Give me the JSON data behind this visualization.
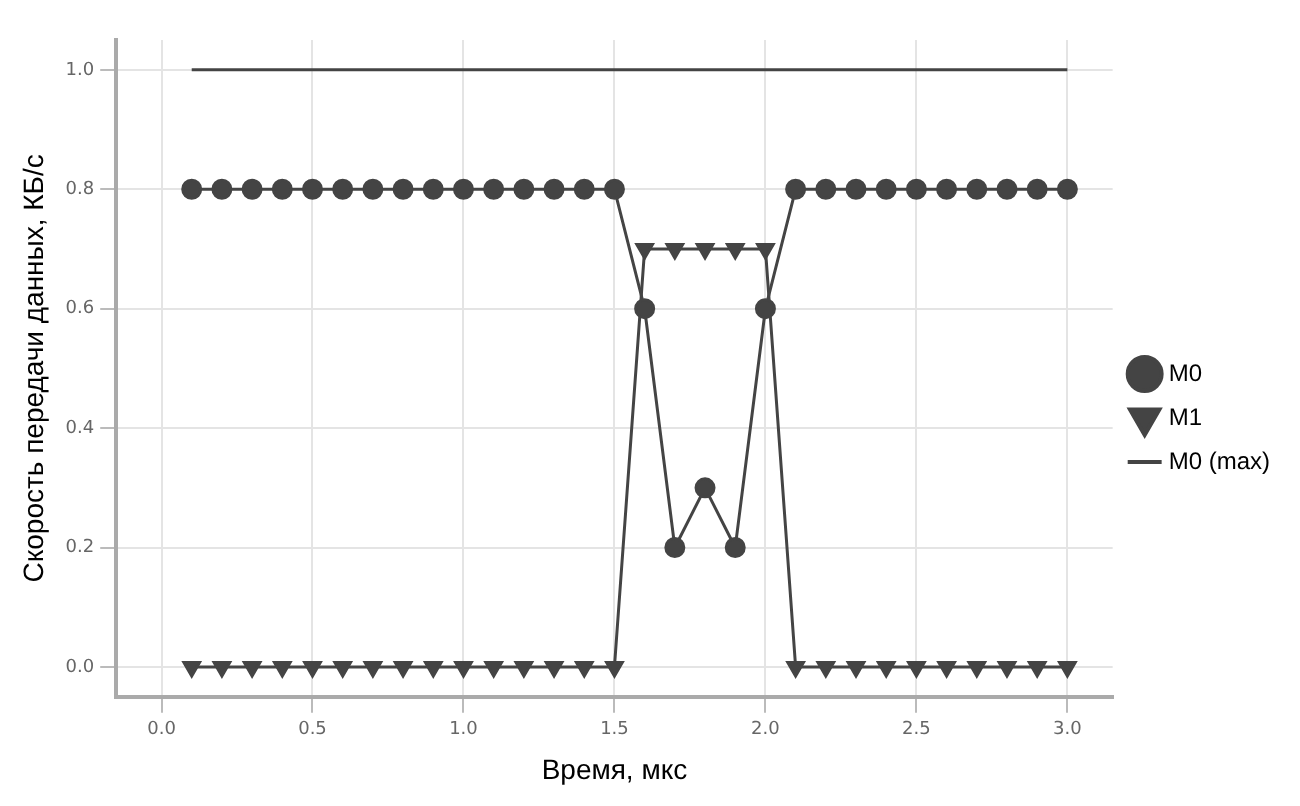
{
  "chart_data": {
    "type": "line",
    "xlabel": "Время, мкс",
    "ylabel": "Скорость передачи данных, КБ/с",
    "x": [
      0.1,
      0.2,
      0.3,
      0.4,
      0.5,
      0.6,
      0.7,
      0.8,
      0.9,
      1.0,
      1.1,
      1.2,
      1.3,
      1.4,
      1.5,
      1.6,
      1.7,
      1.8,
      1.9,
      2.0,
      2.1,
      2.2,
      2.3,
      2.4,
      2.5,
      2.6,
      2.7,
      2.8,
      2.9,
      3.0
    ],
    "series": [
      {
        "name": "M0",
        "color": "#444444",
        "marker": "circle",
        "values": [
          0.8,
          0.8,
          0.8,
          0.8,
          0.8,
          0.8,
          0.8,
          0.8,
          0.8,
          0.8,
          0.8,
          0.8,
          0.8,
          0.8,
          0.8,
          0.6,
          0.2,
          0.3,
          0.2,
          0.6,
          0.8,
          0.8,
          0.8,
          0.8,
          0.8,
          0.8,
          0.8,
          0.8,
          0.8,
          0.8
        ]
      },
      {
        "name": "M1",
        "color": "#444444",
        "marker": "triangle",
        "values": [
          0,
          0,
          0,
          0,
          0,
          0,
          0,
          0,
          0,
          0,
          0,
          0,
          0,
          0,
          0,
          0.7,
          0.7,
          0.7,
          0.7,
          0.7,
          0,
          0,
          0,
          0,
          0,
          0,
          0,
          0,
          0,
          0
        ]
      },
      {
        "name": "M0 (max)",
        "color": "#444444",
        "marker": "none",
        "values": [
          1,
          1,
          1,
          1,
          1,
          1,
          1,
          1,
          1,
          1,
          1,
          1,
          1,
          1,
          1,
          1,
          1,
          1,
          1,
          1,
          1,
          1,
          1,
          1,
          1,
          1,
          1,
          1,
          1,
          1
        ]
      }
    ],
    "xlim": [
      -0.15,
      3.15
    ],
    "xticks": [
      {
        "value": 0,
        "label": "0.0"
      },
      0.5,
      {
        "value": 1,
        "label": "1.0"
      },
      1.5,
      {
        "value": 2,
        "label": "2.0"
      },
      2.5,
      {
        "value": 3,
        "label": "3.0"
      }
    ],
    "ylim": [
      -0.05,
      1.05
    ],
    "yticks": [
      {
        "value": 0,
        "label": "0.0"
      },
      0.2,
      0.4,
      0.6,
      0.8,
      {
        "value": 1,
        "label": "1.0"
      }
    ],
    "grid": true,
    "legend": "right"
  }
}
